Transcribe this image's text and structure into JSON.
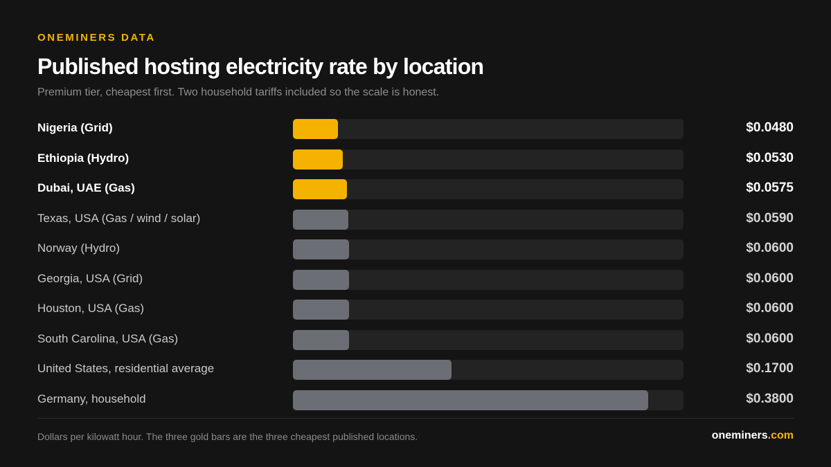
{
  "header": {
    "eyebrow": "ONEMINERS DATA",
    "title": "Published hosting electricity rate by location",
    "subtitle": "Premium tier, cheapest first. Two household tariffs included so the scale is honest."
  },
  "colors": {
    "highlight": "#f5b300",
    "default_bar": "#6c6e75",
    "track": "#232323",
    "background": "#141414"
  },
  "chart_data": {
    "type": "bar",
    "orientation": "horizontal",
    "xlim": [
      0,
      0.418
    ],
    "grid": false,
    "categories": [
      "Nigeria (Grid)",
      "Ethiopia (Hydro)",
      "Dubai, UAE (Gas)",
      "Texas, USA (Gas / wind / solar)",
      "Norway (Hydro)",
      "Georgia, USA (Grid)",
      "Houston, USA (Gas)",
      "South Carolina, USA (Gas)",
      "United States, residential average",
      "Germany, household"
    ],
    "values": [
      0.048,
      0.053,
      0.0575,
      0.059,
      0.06,
      0.06,
      0.06,
      0.06,
      0.17,
      0.38
    ],
    "value_labels": [
      "$0.0480",
      "$0.0530",
      "$0.0575",
      "$0.0590",
      "$0.0600",
      "$0.0600",
      "$0.0600",
      "$0.0600",
      "$0.1700",
      "$0.3800"
    ],
    "highlighted": [
      true,
      true,
      true,
      false,
      false,
      false,
      false,
      false,
      false,
      false
    ]
  },
  "footer": {
    "note": "Dollars per kilowatt hour. The three gold bars are the three cheapest published locations.",
    "brand_name": "oneminers",
    "brand_tld": ".com"
  }
}
